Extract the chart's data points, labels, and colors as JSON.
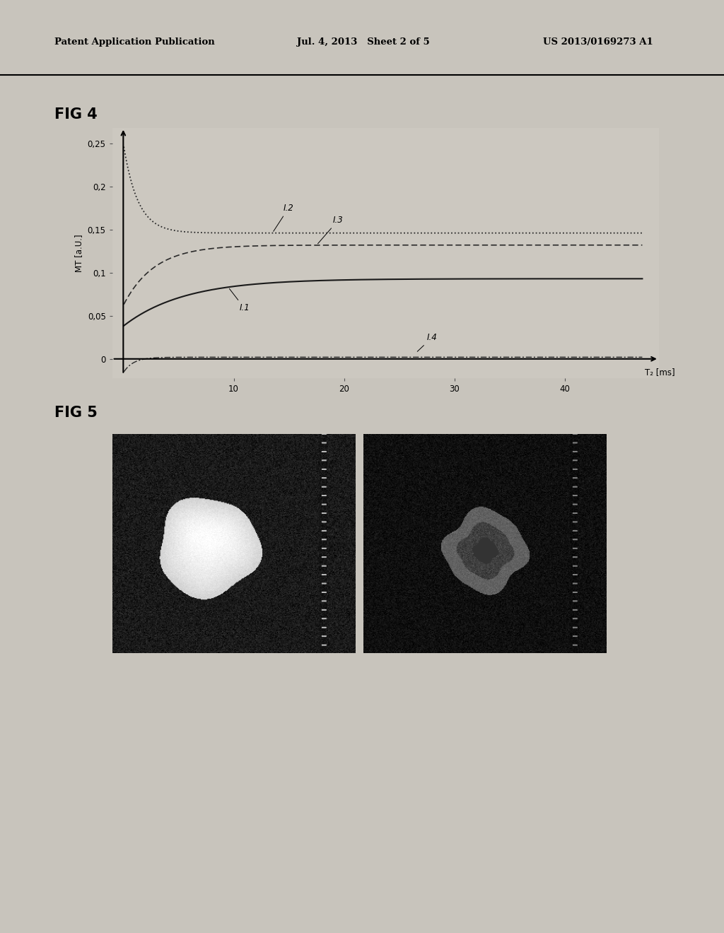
{
  "header_left": "Patent Application Publication",
  "header_mid": "Jul. 4, 2013   Sheet 2 of 5",
  "header_right": "US 2013/0169273 A1",
  "fig4_label": "FIG 4",
  "fig5_label": "FIG 5",
  "ylabel": "MT [a.U.]",
  "xlabel": "T₂ [ms]",
  "ytick_labels": [
    "0",
    "0,05",
    "0,1",
    "0,15",
    "0,2",
    "0,25"
  ],
  "ytick_vals": [
    0,
    0.05,
    0.1,
    0.15,
    0.2,
    0.25
  ],
  "xticks": [
    10,
    20,
    30,
    40
  ],
  "xmax": 47,
  "page_bg": "#c8c4bc",
  "header_bg": "#ffffff",
  "plot_bg": "#ccc8c0",
  "line_color": "#1a1a1a",
  "curve_I2_color": "#2a2a2a",
  "curve_I3_color": "#2a2a2a",
  "curve_I1_color": "#1a1a1a",
  "curve_I4_color": "#2a2a2a"
}
